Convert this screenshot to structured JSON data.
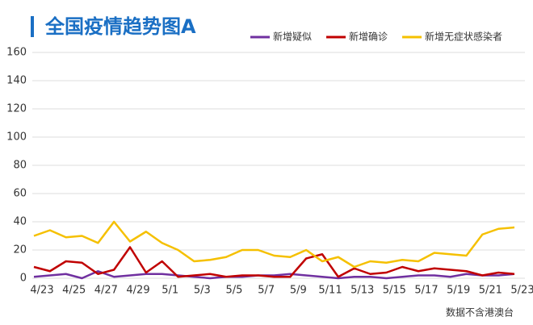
{
  "chart_data": {
    "type": "line",
    "title": "全国疫情趋势图A",
    "note": "数据不含港澳台",
    "categories": [
      "4/23",
      null,
      "4/25",
      null,
      "4/27",
      null,
      "4/29",
      null,
      "5/1",
      null,
      "5/3",
      null,
      "5/5",
      null,
      "5/7",
      null,
      "5/9",
      null,
      "5/11",
      null,
      "5/13",
      null,
      "5/15",
      null,
      "5/17",
      null,
      "5/19",
      null,
      "5/21",
      null,
      "5/23"
    ],
    "series": [
      {
        "name": "新增疑似",
        "color": "#7030a0",
        "values": [
          1,
          2,
          3,
          0,
          5,
          1,
          2,
          3,
          3,
          2,
          1,
          0,
          1,
          1,
          2,
          2,
          3,
          2,
          1,
          0,
          1,
          1,
          0,
          1,
          2,
          2,
          1,
          3,
          2,
          2,
          3
        ]
      },
      {
        "name": "新增确诊",
        "color": "#c00000",
        "values": [
          8,
          5,
          12,
          11,
          3,
          6,
          22,
          4,
          12,
          1,
          2,
          3,
          1,
          2,
          2,
          1,
          1,
          14,
          17,
          1,
          7,
          3,
          4,
          8,
          5,
          7,
          6,
          5,
          2,
          4,
          3
        ]
      },
      {
        "name": "新增无症状感染者",
        "color": "#f5c000",
        "values": [
          30,
          34,
          29,
          30,
          25,
          40,
          26,
          33,
          25,
          20,
          12,
          13,
          15,
          20,
          20,
          16,
          15,
          20,
          12,
          15,
          8,
          12,
          11,
          13,
          12,
          18,
          17,
          16,
          31,
          35,
          36
        ]
      }
    ],
    "ylim": [
      0,
      160
    ],
    "yticks": [
      0,
      20,
      40,
      60,
      80,
      100,
      120,
      140,
      160
    ],
    "grid": true,
    "legend": "top-right"
  }
}
